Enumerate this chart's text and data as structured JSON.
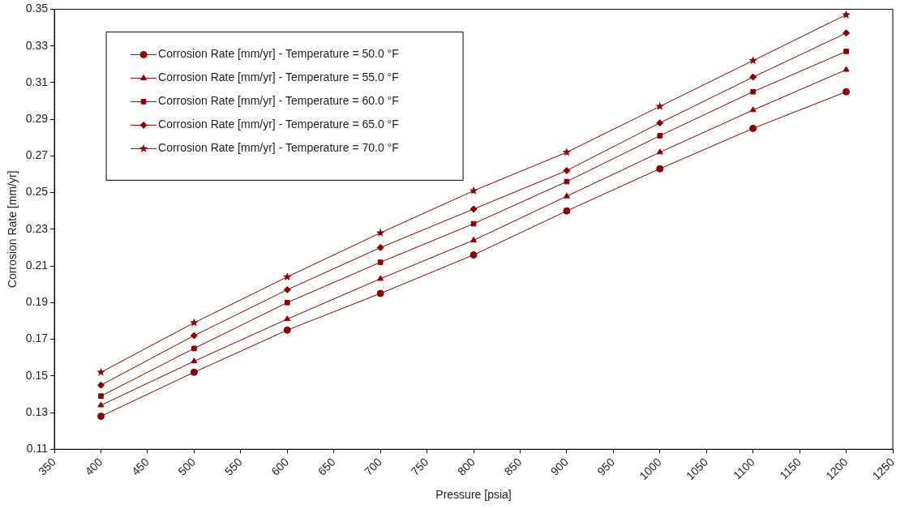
{
  "chart_data": {
    "type": "line",
    "xlabel": "Pressure [psia]",
    "ylabel": "Corrosion Rate [mm/yr]",
    "x": [
      400,
      500,
      600,
      700,
      800,
      900,
      1000,
      1100,
      1200
    ],
    "xlim": [
      350,
      1250
    ],
    "xticks": [
      350,
      400,
      450,
      500,
      550,
      600,
      650,
      700,
      750,
      800,
      850,
      900,
      950,
      1000,
      1050,
      1100,
      1150,
      1200,
      1250
    ],
    "ylim": [
      0.11,
      0.35
    ],
    "yticks": [
      0.11,
      0.13,
      0.15,
      0.17,
      0.19,
      0.21,
      0.23,
      0.25,
      0.27,
      0.29,
      0.31,
      0.33,
      0.35
    ],
    "grid": false,
    "legend": "top left",
    "line_style": "solid",
    "series": [
      {
        "name": "Corrosion Rate [mm/yr] - Temperature = 50.0 °F",
        "color": "#8b0000",
        "marker": "circle",
        "values": [
          0.128,
          0.152,
          0.175,
          0.195,
          0.216,
          0.24,
          0.263,
          0.285,
          0.305
        ]
      },
      {
        "name": "Corrosion Rate [mm/yr] - Temperature = 55.0 °F",
        "color": "#8b0000",
        "marker": "triangle",
        "values": [
          0.134,
          0.158,
          0.181,
          0.203,
          0.224,
          0.248,
          0.272,
          0.295,
          0.317
        ]
      },
      {
        "name": "Corrosion Rate [mm/yr] - Temperature = 60.0 °F",
        "color": "#8b0000",
        "marker": "square",
        "values": [
          0.139,
          0.165,
          0.19,
          0.212,
          0.233,
          0.256,
          0.281,
          0.305,
          0.327
        ]
      },
      {
        "name": "Corrosion Rate [mm/yr] - Temperature = 65.0 °F",
        "color": "#8b0000",
        "marker": "diamond",
        "values": [
          0.145,
          0.172,
          0.197,
          0.22,
          0.241,
          0.262,
          0.288,
          0.313,
          0.337
        ]
      },
      {
        "name": "Corrosion Rate [mm/yr] - Temperature = 70.0 °F",
        "color": "#8b0000",
        "marker": "star",
        "values": [
          0.152,
          0.179,
          0.204,
          0.228,
          0.251,
          0.272,
          0.297,
          0.322,
          0.347
        ]
      }
    ]
  }
}
